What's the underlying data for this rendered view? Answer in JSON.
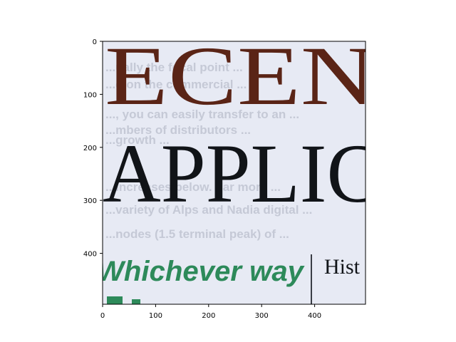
{
  "figure": {
    "kind": "image-with-pixel-axes",
    "x_ticks": [
      "0",
      "100",
      "200",
      "300",
      "400"
    ],
    "y_ticks": [
      "0",
      "100",
      "200",
      "300",
      "400"
    ],
    "x_range": [
      0,
      496
    ],
    "y_range": [
      0,
      496
    ],
    "image": {
      "description_hidden": true,
      "line_top": "ECEN",
      "line_middle": "APPLIC",
      "line_green": "Whichever way",
      "line_right": "Hist",
      "ghost_lines": [
        "...ually the focal point ...",
        "...g on the commercial ...",
        "..., you can easily transfer to an ...",
        "...mbers of distributors ...",
        "...growth ...",
        "...increases below. Far more ...",
        "...variety of Alps and Nadia digital ...",
        "...nodes (1.5 terminal peak) of ..."
      ],
      "colors": {
        "page": "#e7eaf4",
        "brown_text": "#5a2416",
        "black_text": "#111418",
        "green_text": "#2d8a5a",
        "ghost_text": "#c5c9d6",
        "rule": "#3a3d45"
      }
    }
  }
}
